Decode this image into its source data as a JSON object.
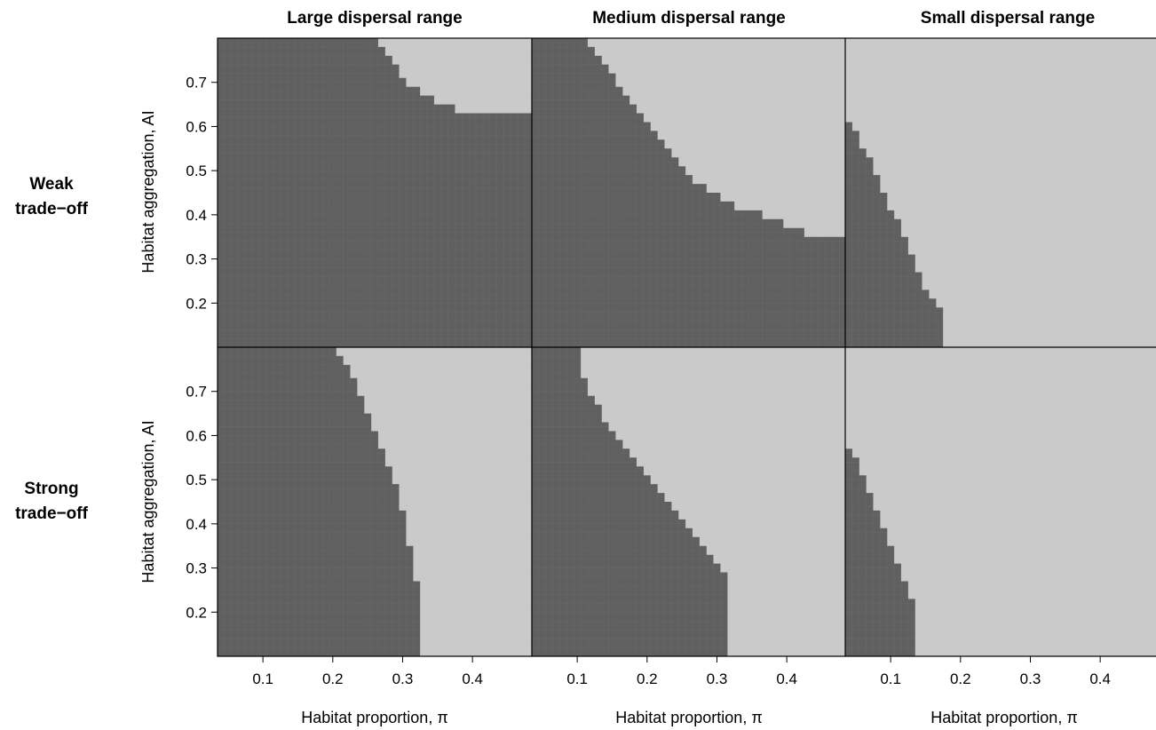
{
  "colors": {
    "dark_region": "#606060",
    "light_region": "#cacaca",
    "grid": "#6a6a6a",
    "frame": "#000000"
  },
  "column_titles": [
    "Large dispersal range",
    "Medium dispersal range",
    "Small dispersal range"
  ],
  "row_labels": [
    [
      "Weak",
      "trade−off"
    ],
    [
      "Strong",
      "trade−off"
    ]
  ],
  "axis": {
    "xlabel": "Habitat proportion, π",
    "ylabel": "Habitat aggregation, AI",
    "x_ticks": [
      0.1,
      0.2,
      0.3,
      0.4
    ],
    "x_tick_labels": [
      "0.1",
      "0.2",
      "0.3",
      "0.4"
    ],
    "y_ticks": [
      0.2,
      0.3,
      0.4,
      0.5,
      0.6,
      0.7
    ],
    "y_tick_labels": [
      "0.2",
      "0.3",
      "0.4",
      "0.5",
      "0.6",
      "0.7"
    ]
  },
  "chart_data": [
    {
      "type": "heatmap",
      "row": "Weak trade−off",
      "column": "Large dispersal range",
      "xlabel": "",
      "ylabel": "Habitat aggregation, AI",
      "xlim": [
        0.035,
        0.485
      ],
      "ylim": [
        0.1,
        0.8
      ],
      "boundary_ai": [
        0.8,
        0.78,
        0.76,
        0.74,
        0.71,
        0.69,
        0.67,
        0.65,
        0.63
      ],
      "boundary_pi": [
        0.265,
        0.275,
        0.285,
        0.295,
        0.305,
        0.325,
        0.345,
        0.375,
        0.485
      ]
    },
    {
      "type": "heatmap",
      "row": "Weak trade−off",
      "column": "Medium dispersal range",
      "xlabel": "",
      "ylabel": "",
      "xlim": [
        0.035,
        0.485
      ],
      "ylim": [
        0.1,
        0.8
      ],
      "boundary_ai": [
        0.8,
        0.78,
        0.76,
        0.74,
        0.72,
        0.69,
        0.67,
        0.65,
        0.63,
        0.61,
        0.59,
        0.57,
        0.55,
        0.53,
        0.51,
        0.49,
        0.47,
        0.45,
        0.43,
        0.41,
        0.39,
        0.37,
        0.35
      ],
      "boundary_pi": [
        0.115,
        0.125,
        0.135,
        0.145,
        0.155,
        0.165,
        0.175,
        0.185,
        0.195,
        0.205,
        0.215,
        0.225,
        0.235,
        0.245,
        0.255,
        0.265,
        0.285,
        0.305,
        0.325,
        0.365,
        0.395,
        0.425,
        0.485
      ]
    },
    {
      "type": "heatmap",
      "row": "Weak trade−off",
      "column": "Small dispersal range",
      "xlabel": "",
      "ylabel": "",
      "xlim": [
        0.035,
        0.485
      ],
      "ylim": [
        0.1,
        0.8
      ],
      "boundary_ai": [
        0.61,
        0.59,
        0.55,
        0.53,
        0.49,
        0.45,
        0.41,
        0.39,
        0.35,
        0.31,
        0.27,
        0.23,
        0.21,
        0.19,
        0.17,
        0.15
      ],
      "boundary_pi": [
        0.045,
        0.055,
        0.065,
        0.075,
        0.085,
        0.095,
        0.105,
        0.115,
        0.125,
        0.135,
        0.145,
        0.155,
        0.165,
        0.175,
        0.175,
        0.175
      ]
    },
    {
      "type": "heatmap",
      "row": "Strong trade−off",
      "column": "Large dispersal range",
      "xlabel": "Habitat proportion, π",
      "ylabel": "Habitat aggregation, AI",
      "xlim": [
        0.035,
        0.485
      ],
      "ylim": [
        0.1,
        0.8
      ],
      "boundary_ai": [
        0.8,
        0.78,
        0.76,
        0.73,
        0.69,
        0.65,
        0.61,
        0.57,
        0.53,
        0.49,
        0.43,
        0.35,
        0.27
      ],
      "boundary_pi": [
        0.205,
        0.215,
        0.225,
        0.235,
        0.245,
        0.255,
        0.265,
        0.275,
        0.285,
        0.295,
        0.305,
        0.315,
        0.325
      ]
    },
    {
      "type": "heatmap",
      "row": "Strong trade−off",
      "column": "Medium dispersal range",
      "xlabel": "Habitat proportion, π",
      "ylabel": "",
      "xlim": [
        0.035,
        0.485
      ],
      "ylim": [
        0.1,
        0.8
      ],
      "boundary_ai": [
        0.8,
        0.73,
        0.69,
        0.67,
        0.63,
        0.61,
        0.59,
        0.57,
        0.55,
        0.53,
        0.51,
        0.49,
        0.47,
        0.45,
        0.43,
        0.41,
        0.39,
        0.37,
        0.35,
        0.33,
        0.31,
        0.29,
        0.27
      ],
      "boundary_pi": [
        0.105,
        0.115,
        0.125,
        0.135,
        0.145,
        0.155,
        0.165,
        0.175,
        0.185,
        0.195,
        0.205,
        0.215,
        0.225,
        0.235,
        0.245,
        0.255,
        0.265,
        0.275,
        0.285,
        0.295,
        0.305,
        0.315,
        0.315
      ]
    },
    {
      "type": "heatmap",
      "row": "Strong trade−off",
      "column": "Small dispersal range",
      "xlabel": "Habitat proportion, π",
      "ylabel": "",
      "xlim": [
        0.035,
        0.485
      ],
      "ylim": [
        0.1,
        0.8
      ],
      "boundary_ai": [
        0.57,
        0.55,
        0.51,
        0.47,
        0.43,
        0.39,
        0.35,
        0.31,
        0.27,
        0.23,
        0.19,
        0.15
      ],
      "boundary_pi": [
        0.045,
        0.055,
        0.065,
        0.075,
        0.085,
        0.095,
        0.105,
        0.115,
        0.125,
        0.135,
        0.135,
        0.135
      ]
    }
  ]
}
